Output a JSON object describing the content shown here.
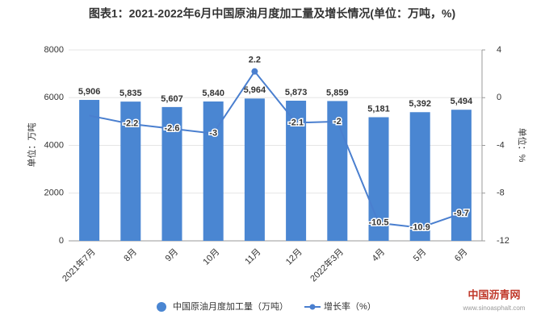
{
  "chart_data": {
    "type": "bar",
    "title": "图表1：2021-2022年6月中国原油月度加工量及增长情况(单位：万吨，%)",
    "y_label": "单位：万吨",
    "y2_label": "单位：%",
    "categories": [
      "2021年7月",
      "8月",
      "9月",
      "10月",
      "11月",
      "12月",
      "2022年3月",
      "4月",
      "5月",
      "6月"
    ],
    "series": [
      {
        "name": "中国原油月度加工量（万吨）",
        "type": "bar",
        "color": "#4a86d2",
        "values": [
          5906,
          5835,
          5607,
          5840,
          5964,
          5873,
          5859,
          5181,
          5392,
          5494
        ],
        "value_labels": [
          "5,906",
          "5,835",
          "5,607",
          "5,840",
          "5,964",
          "5,873",
          "5,859",
          "5,181",
          "5,392",
          "5,494"
        ]
      },
      {
        "name": "增长率（%）",
        "type": "line",
        "axis": "y2",
        "color": "#4a7fcf",
        "values": [
          -1.5,
          -2.2,
          -2.6,
          -3,
          2.2,
          -2.1,
          -2,
          -10.5,
          -10.9,
          -9.7
        ],
        "value_labels": [
          null,
          "-2.2",
          "-2.6",
          "-3",
          "2.2",
          "-2.1",
          "-2",
          "-10.5",
          "-10.9",
          "-9.7"
        ]
      }
    ],
    "ylim": [
      0,
      8000
    ],
    "yticks": [
      0,
      2000,
      4000,
      6000,
      8000
    ],
    "y2lim": [
      -12,
      4
    ],
    "y2ticks": [
      -12,
      -8,
      -4,
      0,
      4
    ],
    "grid": true
  },
  "logo": {
    "name": "中国沥青网",
    "url": "www.sinoasphalt.com"
  }
}
